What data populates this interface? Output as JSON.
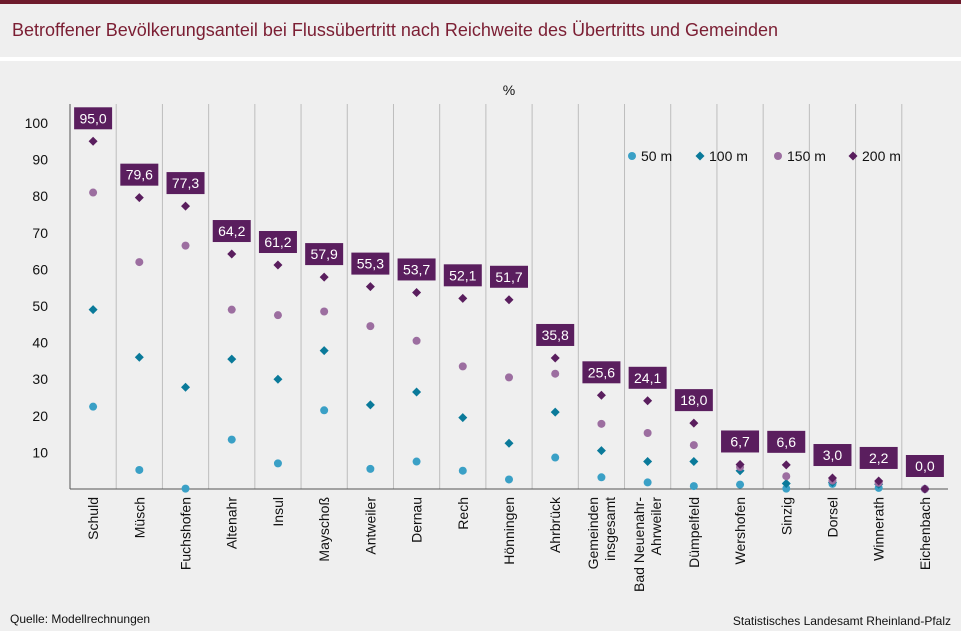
{
  "title": "Betroffener Bevölkerungsanteil bei Flussübertritt nach Reichweite des Übertritts und Gemeinden",
  "source": "Quelle: Modellrechnungen",
  "publisher": "Statistisches Landesamt Rheinland-Pfalz",
  "colors": {
    "accent": "#7b1e33",
    "top_bar": "#6e1b2c",
    "s50": "#3aa0c6",
    "s100": "#0a7a9a",
    "s150": "#9c6ea0",
    "s200": "#5a1e5e",
    "label_bg": "#5a1e5e"
  },
  "chart_data": {
    "type": "scatter",
    "ylabel": "%",
    "ylim": [
      0,
      100
    ],
    "yticks": [
      10,
      20,
      30,
      40,
      50,
      60,
      70,
      80,
      90,
      100
    ],
    "grid": "vertical separators between categories",
    "legend_position": "top-right",
    "categories": [
      [
        "Schuld"
      ],
      [
        "Müsch"
      ],
      [
        "Fuchshofen"
      ],
      [
        "Altenahr"
      ],
      [
        "Insul"
      ],
      [
        "Mayschoß"
      ],
      [
        "Antweiler"
      ],
      [
        "Dernau"
      ],
      [
        "Rech"
      ],
      [
        "Hönningen"
      ],
      [
        "Ahrbrück"
      ],
      [
        "Gemeinden",
        "insgesamt"
      ],
      [
        "Bad Neuenahr-",
        "Ahrweiler"
      ],
      [
        "Dümpelfeld"
      ],
      [
        "Wershofen"
      ],
      [
        "Sinzig"
      ],
      [
        "Dorsel"
      ],
      [
        "Winnerath"
      ],
      [
        "Eichenbach"
      ]
    ],
    "series": [
      {
        "name": "50 m",
        "marker": "circle",
        "color": "#3aa0c6",
        "values": [
          22.5,
          5.2,
          0.1,
          13.5,
          7.0,
          21.5,
          5.5,
          7.5,
          5.0,
          2.6,
          8.6,
          3.2,
          1.8,
          0.8,
          1.2,
          0.1,
          1.4,
          0.3,
          0.0
        ]
      },
      {
        "name": "100 m",
        "marker": "diamond",
        "color": "#0a7a9a",
        "values": [
          49.0,
          36.0,
          27.8,
          35.5,
          30.0,
          37.8,
          23.0,
          26.5,
          19.5,
          12.5,
          21.0,
          10.5,
          7.5,
          7.5,
          5.0,
          1.5,
          1.8,
          1.3,
          0.0
        ]
      },
      {
        "name": "150 m",
        "marker": "circle",
        "color": "#9c6ea0",
        "values": [
          81.0,
          62.0,
          66.5,
          49.0,
          47.5,
          48.5,
          44.5,
          40.5,
          33.5,
          30.5,
          31.5,
          17.8,
          15.3,
          12.0,
          6.0,
          3.5,
          2.3,
          1.7,
          0.0
        ]
      },
      {
        "name": "200 m",
        "marker": "diamond",
        "color": "#5a1e5e",
        "values": [
          95.0,
          79.6,
          77.3,
          64.2,
          61.2,
          57.9,
          55.3,
          53.7,
          52.1,
          51.7,
          35.8,
          25.6,
          24.1,
          18.0,
          6.7,
          6.6,
          3.0,
          2.2,
          0.0
        ]
      }
    ],
    "data_labels": [
      "95,0",
      "79,6",
      "77,3",
      "64,2",
      "61,2",
      "57,9",
      "55,3",
      "53,7",
      "52,1",
      "51,7",
      "35,8",
      "25,6",
      "24,1",
      "18,0",
      "6,7",
      "6,6",
      "3,0",
      "2,2",
      "0,0"
    ]
  }
}
